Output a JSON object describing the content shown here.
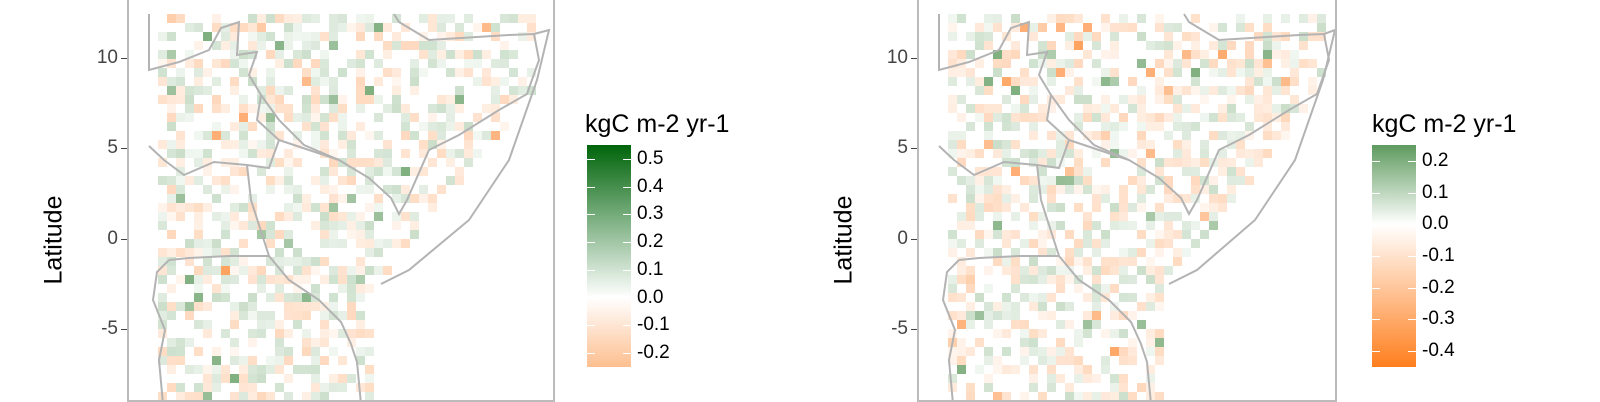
{
  "panels": [
    {
      "id": "left",
      "ylabel": "Latitude",
      "yticks": [
        "10",
        "5",
        "0",
        "-5"
      ],
      "legend": {
        "title": "kgC m-2 yr-1",
        "labels": [
          "0.5",
          "0.4",
          "0.3",
          "0.2",
          "0.1",
          "0.0",
          "-0.1",
          "-0.2"
        ],
        "colors": {
          "max": "#00640a",
          "mid": "#ffffff",
          "min": "#fdbf90"
        }
      }
    },
    {
      "id": "right",
      "ylabel": "Latitude",
      "yticks": [
        "10",
        "5",
        "0",
        "-5"
      ],
      "legend": {
        "title": "kgC m-2 yr-1",
        "labels": [
          "0.2",
          "0.1",
          "0.0",
          "-0.1",
          "-0.2",
          "-0.3",
          "-0.4"
        ],
        "colors": {
          "max": "#5e9a5e",
          "mid": "#ffffff",
          "min": "#ff7f1e"
        }
      }
    }
  ],
  "map_colors": {
    "border": "#b3b3b3",
    "grid": "#ebebeb",
    "green": "#5e9a5e",
    "orange": "#ff8c3a"
  }
}
